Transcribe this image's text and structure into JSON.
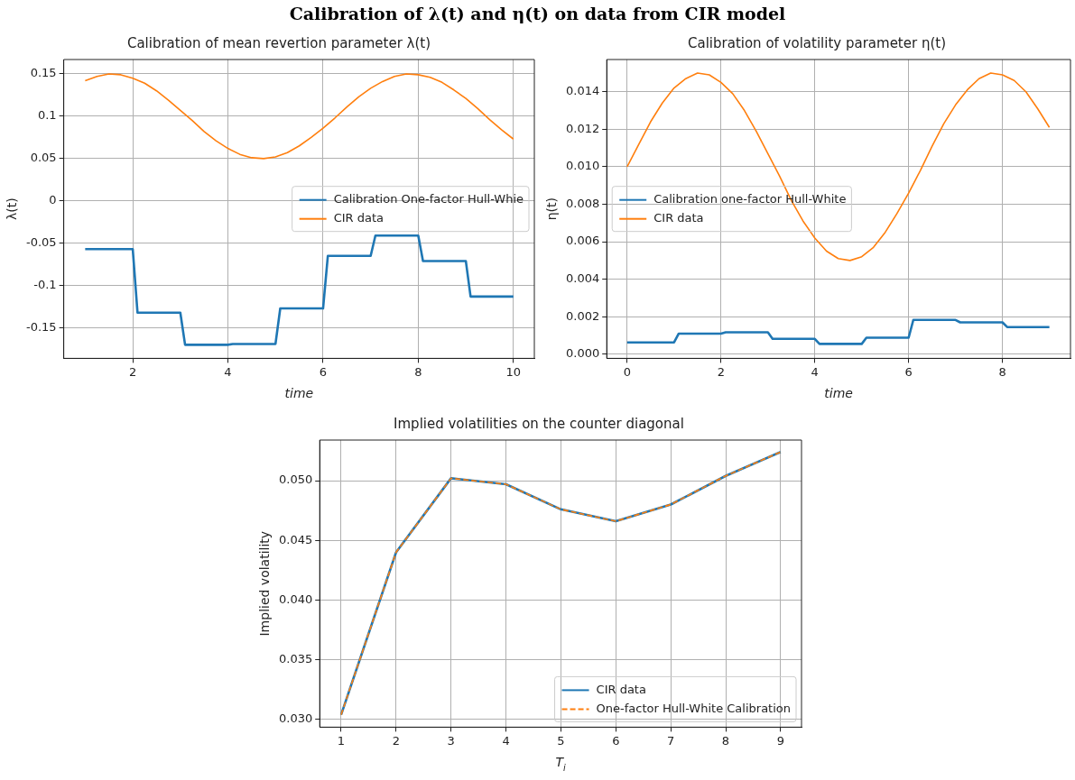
{
  "chart_data": [
    {
      "type": "line",
      "title": "Calibration of mean revertion parameter λ(t)",
      "xlabel": "time",
      "ylabel": "λ(t)",
      "annotations": [
        "Calibration of λ(t) and η(t) on data from CIR model"
      ],
      "xlim": [
        0.55,
        10.44
      ],
      "xticks": [
        2,
        4,
        6,
        8,
        10
      ],
      "ylim": [
        -0.186,
        0.167
      ],
      "yticks": [
        -0.15,
        -0.1,
        -0.05,
        0,
        0.05,
        0.1,
        0.15
      ],
      "grid": true,
      "legend": "right",
      "marker": "none",
      "series": [
        {
          "name": "Calibration One-factor Hull-Whie",
          "color": "#1f77b4",
          "x": [
            1,
            2,
            2.1,
            3,
            3.1,
            4,
            4.1,
            5,
            5.1,
            6,
            6.1,
            7,
            7.1,
            8,
            8.1,
            9,
            9.1,
            10
          ],
          "values": [
            -0.057,
            -0.057,
            -0.132,
            -0.132,
            -0.17,
            -0.17,
            -0.169,
            -0.169,
            -0.127,
            -0.127,
            -0.065,
            -0.065,
            -0.041,
            -0.041,
            -0.071,
            -0.071,
            -0.113,
            -0.113
          ]
        },
        {
          "name": "CIR data",
          "color": "#ff7f0e",
          "x": [
            1,
            1.25,
            1.5,
            1.75,
            2,
            2.25,
            2.5,
            2.75,
            3,
            3.25,
            3.5,
            3.75,
            4,
            4.25,
            4.5,
            4.75,
            5,
            5.25,
            5.5,
            5.75,
            6,
            6.25,
            6.5,
            6.75,
            7,
            7.25,
            7.5,
            7.75,
            8,
            8.25,
            8.5,
            8.75,
            9,
            9.25,
            9.5,
            9.75,
            10
          ],
          "values": [
            0.142,
            0.147,
            0.15,
            0.149,
            0.145,
            0.139,
            0.13,
            0.119,
            0.107,
            0.095,
            0.082,
            0.071,
            0.062,
            0.055,
            0.051,
            0.05,
            0.052,
            0.057,
            0.065,
            0.075,
            0.086,
            0.098,
            0.111,
            0.123,
            0.133,
            0.141,
            0.147,
            0.15,
            0.149,
            0.146,
            0.14,
            0.131,
            0.121,
            0.109,
            0.096,
            0.084,
            0.073
          ]
        }
      ]
    },
    {
      "type": "line",
      "title": "Calibration of volatility parameter η(t)",
      "xlabel": "time",
      "ylabel": "η(t)",
      "xlim": [
        -0.435,
        9.45
      ],
      "xticks": [
        0,
        2,
        4,
        6,
        8
      ],
      "ylim": [
        -0.00022,
        0.01572
      ],
      "yticks": [
        {
          "value": 0,
          "label": "0.000"
        },
        {
          "value": 0.002,
          "label": "0.002"
        },
        {
          "value": 0.004,
          "label": "0.004"
        },
        {
          "value": 0.006,
          "label": "0.006"
        },
        {
          "value": 0.008,
          "label": "0.008"
        },
        {
          "value": 0.01,
          "label": "0.010"
        },
        {
          "value": 0.012,
          "label": "0.012"
        },
        {
          "value": 0.014,
          "label": "0.014"
        }
      ],
      "grid": true,
      "legend": "left",
      "marker": "none",
      "series": [
        {
          "name": "Calibration one-factor Hull-White",
          "color": "#1f77b4",
          "x": [
            0,
            1,
            1.1,
            2,
            2.1,
            3,
            3.1,
            4,
            4.1,
            5,
            5.1,
            6,
            6.1,
            7,
            7.1,
            8,
            8.1,
            9
          ],
          "values": [
            0.00063,
            0.00063,
            0.0011,
            0.0011,
            0.00117,
            0.00117,
            0.00082,
            0.00082,
            0.00055,
            0.00055,
            0.00088,
            0.00088,
            0.00183,
            0.00183,
            0.0017,
            0.0017,
            0.00145,
            0.00145
          ]
        },
        {
          "name": "CIR data",
          "color": "#ff7f0e",
          "x": [
            0,
            0.25,
            0.5,
            0.75,
            1,
            1.25,
            1.5,
            1.75,
            2,
            2.25,
            2.5,
            2.75,
            3,
            3.25,
            3.5,
            3.75,
            4,
            4.25,
            4.5,
            4.75,
            5,
            5.25,
            5.5,
            5.75,
            6,
            6.25,
            6.5,
            6.75,
            7,
            7.25,
            7.5,
            7.75,
            8,
            8.25,
            8.5,
            8.75,
            9
          ],
          "values": [
            0.01,
            0.0112,
            0.0124,
            0.0134,
            0.0142,
            0.0147,
            0.015,
            0.0149,
            0.0145,
            0.0139,
            0.013,
            0.0119,
            0.0107,
            0.0095,
            0.0082,
            0.0071,
            0.0062,
            0.0055,
            0.0051,
            0.005,
            0.0052,
            0.0057,
            0.0065,
            0.0075,
            0.0086,
            0.0098,
            0.0111,
            0.0123,
            0.0133,
            0.0141,
            0.0147,
            0.015,
            0.0149,
            0.0146,
            0.014,
            0.0131,
            0.0121
          ]
        }
      ]
    },
    {
      "type": "line",
      "title": "Implied volatilities on the counter diagonal",
      "xlabel": "T$_{i}$",
      "ylabel": "Implied volatility",
      "xlim": [
        0.61,
        9.38
      ],
      "xticks": [
        1,
        2,
        3,
        4,
        5,
        6,
        7,
        8,
        9
      ],
      "ylim": [
        0.02936,
        0.0534
      ],
      "yticks": [
        {
          "value": 0.03,
          "label": "0.030"
        },
        {
          "value": 0.035,
          "label": "0.035"
        },
        {
          "value": 0.04,
          "label": "0.040"
        },
        {
          "value": 0.045,
          "label": "0.045"
        },
        {
          "value": 0.05,
          "label": "0.050"
        }
      ],
      "grid": true,
      "legend": "bottom right",
      "marker": "none",
      "series": [
        {
          "name": "CIR data",
          "color": "#1f77b4",
          "x": [
            1,
            2,
            3,
            4,
            5,
            6,
            7,
            8,
            9
          ],
          "values": [
            0.0304,
            0.044,
            0.0502,
            0.0497,
            0.0476,
            0.0466,
            0.048,
            0.0504,
            0.0524
          ]
        },
        {
          "name": "One-factor Hull-White Calibration",
          "color": "#ff7f0e",
          "line_style": "dashed",
          "x": [
            1,
            2,
            3,
            4,
            5,
            6,
            7,
            8,
            9
          ],
          "values": [
            0.0304,
            0.044,
            0.0502,
            0.0497,
            0.0476,
            0.0466,
            0.048,
            0.0504,
            0.0524
          ]
        }
      ]
    }
  ]
}
